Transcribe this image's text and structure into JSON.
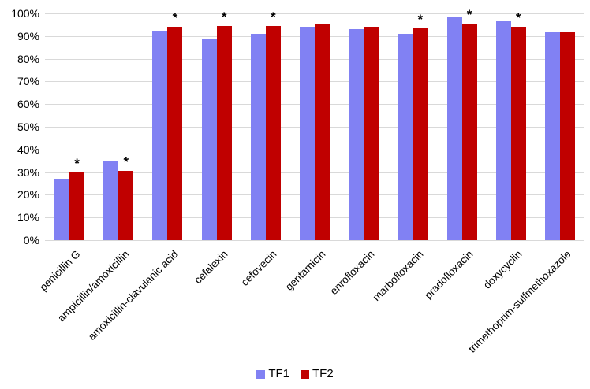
{
  "chart_data": {
    "type": "bar",
    "title": "",
    "unit": "%",
    "categories": [
      "penicillin G",
      "ampicillin/amoxicillin",
      "amoxicillin-clavulanic acid",
      "cefalexin",
      "cefovecin",
      "gentamicin",
      "enrofloxacin",
      "marbofloxacin",
      "pradofloxacin",
      "doxycyclin",
      "trimethoprim-sulfmethoxazole"
    ],
    "series": [
      {
        "name": "TF1",
        "color": "#8181F3",
        "values": [
          27,
          35,
          92,
          89,
          91,
          94,
          93,
          91,
          98.5,
          96.5,
          91.5
        ]
      },
      {
        "name": "TF2",
        "color": "#C00000",
        "values": [
          30,
          30.5,
          94,
          94.5,
          94.5,
          95,
          94,
          93.5,
          95.5,
          94,
          91.8
        ]
      }
    ],
    "significance": {
      "marker": "*",
      "applies_to_series": "TF2",
      "flags": [
        true,
        true,
        true,
        true,
        true,
        false,
        false,
        true,
        true,
        true,
        false
      ]
    },
    "y_axis": {
      "min": 0,
      "max": 100,
      "tick_step": 10,
      "tick_labels": [
        "0%",
        "10%",
        "20%",
        "30%",
        "40%",
        "50%",
        "60%",
        "70%",
        "80%",
        "90%",
        "100%"
      ]
    },
    "grid": true,
    "legend": {
      "position": "bottom",
      "entries": [
        "TF1",
        "TF2"
      ]
    },
    "colors": {
      "background": "#FFFFFF",
      "gridline": "#D9D9D9",
      "axis_line": "#D9D9D9",
      "text": "#000000",
      "marker": "#000000"
    }
  }
}
